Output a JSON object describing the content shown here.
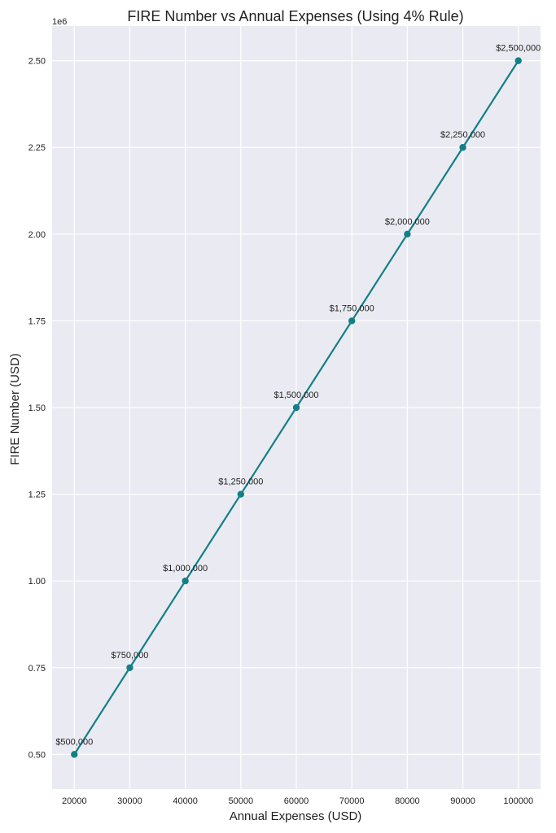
{
  "chart_data": {
    "type": "line",
    "title": "FIRE Number vs Annual Expenses (Using 4% Rule)",
    "xlabel": "Annual Expenses (USD)",
    "ylabel": "FIRE Number (USD)",
    "y_exponent_label": "1e6",
    "x": [
      20000,
      30000,
      40000,
      50000,
      60000,
      70000,
      80000,
      90000,
      100000
    ],
    "series": [
      {
        "values": [
          500000,
          750000,
          1000000,
          1250000,
          1500000,
          1750000,
          2000000,
          2250000,
          2500000
        ],
        "labels": [
          "$500,000",
          "$750,000",
          "$1,000,000",
          "$1,250,000",
          "$1,500,000",
          "$1,750,000",
          "$2,000,000",
          "$2,250,000",
          "$2,500,000"
        ],
        "color": "#138086",
        "marker": "circle"
      }
    ],
    "xlim": [
      16000,
      104000
    ],
    "ylim": [
      400000,
      2600000
    ],
    "x_ticks": [
      20000,
      30000,
      40000,
      50000,
      60000,
      70000,
      80000,
      90000,
      100000
    ],
    "x_tick_labels": [
      "20000",
      "30000",
      "40000",
      "50000",
      "60000",
      "70000",
      "80000",
      "90000",
      "100000"
    ],
    "y_ticks": [
      500000,
      750000,
      1000000,
      1250000,
      1500000,
      1750000,
      2000000,
      2250000,
      2500000
    ],
    "y_tick_labels": [
      "0.50",
      "0.75",
      "1.00",
      "1.25",
      "1.50",
      "1.75",
      "2.00",
      "2.25",
      "2.50"
    ],
    "grid": true,
    "style": {
      "background": "#eaeaf2",
      "grid_color": "#ffffff"
    }
  }
}
